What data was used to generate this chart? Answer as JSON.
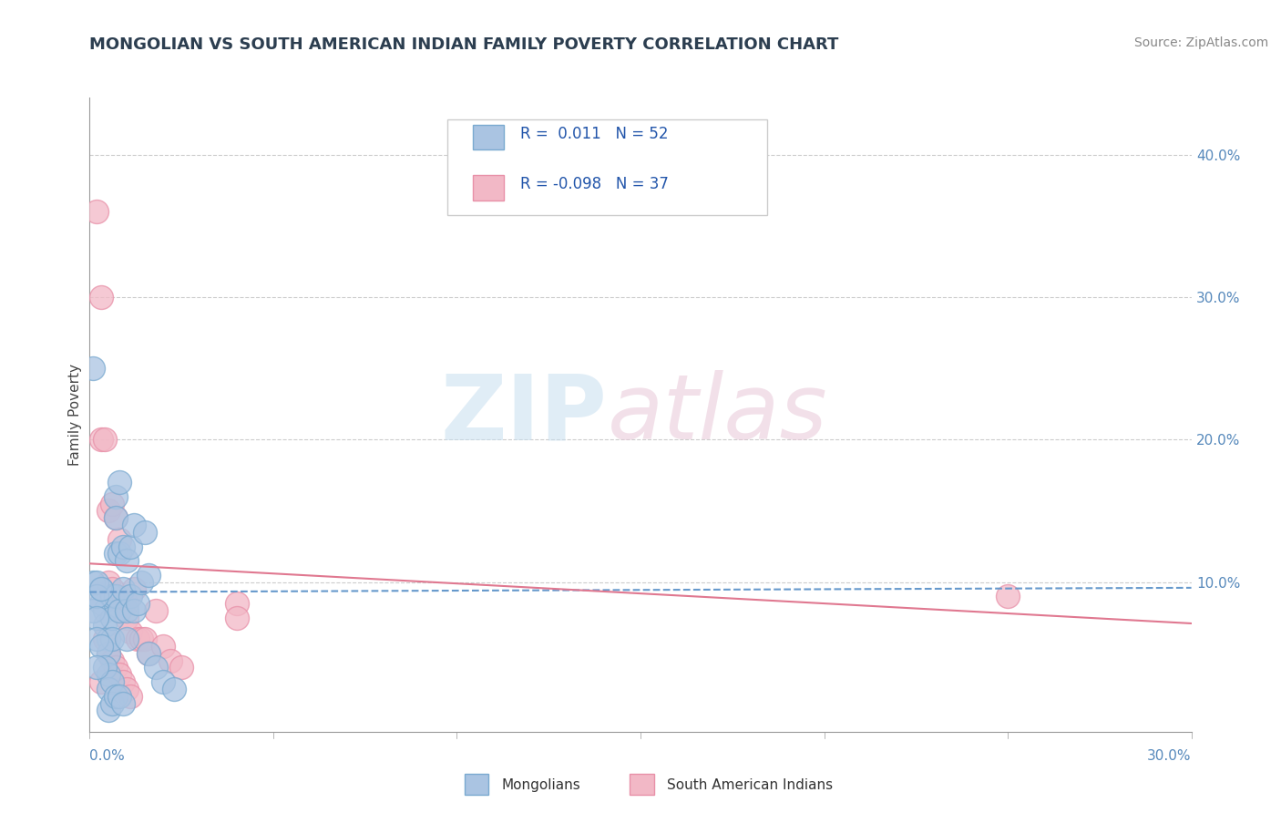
{
  "title": "MONGOLIAN VS SOUTH AMERICAN INDIAN FAMILY POVERTY CORRELATION CHART",
  "source": "Source: ZipAtlas.com",
  "ylabel": "Family Poverty",
  "xmin": 0.0,
  "xmax": 0.3,
  "ymin": -0.005,
  "ymax": 0.44,
  "yticks": [
    0.1,
    0.2,
    0.3,
    0.4
  ],
  "ytick_labels": [
    "10.0%",
    "20.0%",
    "30.0%",
    "40.0%"
  ],
  "xtick_labels": [
    "0.0%",
    "30.0%"
  ],
  "mongolian_color": "#aac4e2",
  "mongolian_edge": "#7aaad0",
  "south_american_color": "#f2b8c6",
  "south_american_edge": "#e890a8",
  "trendline_mongolian_color": "#6699cc",
  "trendline_south_american_color": "#e07890",
  "grid_color": "#cccccc",
  "title_color": "#2c3e50",
  "source_color": "#888888",
  "legend_text_color": "#2255aa",
  "axis_label_color": "#444444",
  "tick_color": "#5588bb",
  "mongolians_x": [
    0.003,
    0.003,
    0.004,
    0.004,
    0.005,
    0.005,
    0.005,
    0.006,
    0.006,
    0.006,
    0.007,
    0.007,
    0.007,
    0.007,
    0.008,
    0.008,
    0.008,
    0.009,
    0.009,
    0.01,
    0.01,
    0.01,
    0.011,
    0.011,
    0.012,
    0.012,
    0.013,
    0.014,
    0.015,
    0.016,
    0.001,
    0.001,
    0.002,
    0.002,
    0.002,
    0.002,
    0.003,
    0.003,
    0.004,
    0.005,
    0.005,
    0.006,
    0.006,
    0.007,
    0.008,
    0.009,
    0.016,
    0.018,
    0.02,
    0.023,
    0.001,
    0.002
  ],
  "mongolians_y": [
    0.095,
    0.085,
    0.08,
    0.07,
    0.06,
    0.05,
    0.035,
    0.09,
    0.075,
    0.06,
    0.16,
    0.145,
    0.12,
    0.09,
    0.17,
    0.12,
    0.08,
    0.125,
    0.095,
    0.115,
    0.08,
    0.06,
    0.125,
    0.09,
    0.14,
    0.08,
    0.085,
    0.1,
    0.135,
    0.105,
    0.1,
    0.08,
    0.1,
    0.09,
    0.075,
    0.06,
    0.095,
    0.055,
    0.04,
    0.025,
    0.01,
    0.03,
    0.015,
    0.02,
    0.02,
    0.015,
    0.05,
    0.04,
    0.03,
    0.025,
    0.25,
    0.04
  ],
  "south_american_x": [
    0.002,
    0.003,
    0.003,
    0.004,
    0.005,
    0.005,
    0.006,
    0.006,
    0.007,
    0.007,
    0.008,
    0.008,
    0.009,
    0.01,
    0.01,
    0.011,
    0.012,
    0.013,
    0.014,
    0.015,
    0.016,
    0.018,
    0.02,
    0.022,
    0.025,
    0.04,
    0.04,
    0.25,
    0.003,
    0.004,
    0.005,
    0.006,
    0.007,
    0.008,
    0.009,
    0.01,
    0.011
  ],
  "south_american_y": [
    0.36,
    0.3,
    0.2,
    0.2,
    0.15,
    0.1,
    0.155,
    0.095,
    0.145,
    0.09,
    0.13,
    0.08,
    0.085,
    0.085,
    0.075,
    0.065,
    0.095,
    0.06,
    0.06,
    0.06,
    0.05,
    0.08,
    0.055,
    0.045,
    0.04,
    0.085,
    0.075,
    0.09,
    0.03,
    0.06,
    0.05,
    0.045,
    0.04,
    0.035,
    0.03,
    0.025,
    0.02
  ],
  "mongo_trend_x0": 0.0,
  "mongo_trend_x1": 0.3,
  "mongo_trend_y0": 0.093,
  "mongo_trend_y1": 0.096,
  "sa_trend_x0": 0.0,
  "sa_trend_x1": 0.3,
  "sa_trend_y0": 0.113,
  "sa_trend_y1": 0.071
}
